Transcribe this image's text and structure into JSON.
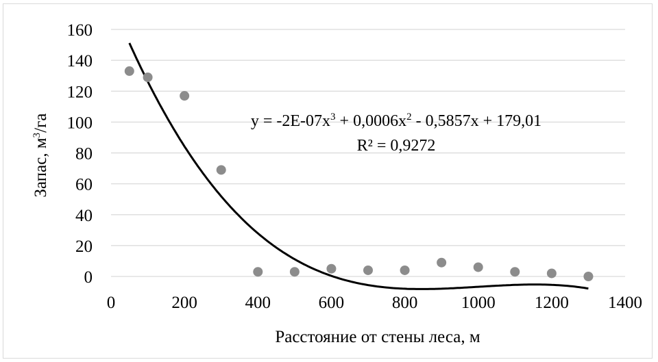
{
  "chart_data": {
    "type": "scatter",
    "x": [
      50,
      100,
      200,
      300,
      400,
      500,
      600,
      700,
      800,
      900,
      1000,
      1100,
      1200,
      1300
    ],
    "y": [
      133,
      129,
      117,
      69,
      3,
      3,
      5,
      4,
      4,
      9,
      6,
      3,
      2,
      0
    ],
    "xlim": [
      0,
      1400
    ],
    "ylim": [
      0,
      160
    ],
    "xticks": [
      "0",
      "200",
      "400",
      "600",
      "800",
      "1000",
      "1200",
      "1400"
    ],
    "yticks": [
      "0",
      "20",
      "40",
      "60",
      "80",
      "100",
      "120",
      "140",
      "160"
    ],
    "xlabel": "Расстояние от стены леса, м",
    "ylabel": {
      "main": "Запас, м",
      "sup": "3",
      "tail": "/га"
    },
    "grid": "horizontal",
    "trendline": {
      "type": "polynomial",
      "order": 3,
      "coefficients": {
        "a3": -2e-07,
        "a2": 0.0006,
        "a1": -0.5857,
        "a0": 179.01
      },
      "x_range": [
        50,
        1300
      ],
      "equation": {
        "p1": "y = -2E-07x",
        "s1": "3",
        "p2": " + 0,0006x",
        "s2": "2",
        "p3": " - 0,5857x + 179,01"
      },
      "r2": "R² = 0,9272"
    },
    "colors": {
      "marker": "#8c8c8c",
      "trendline": "#000000",
      "grid": "#d9d9d9"
    }
  }
}
